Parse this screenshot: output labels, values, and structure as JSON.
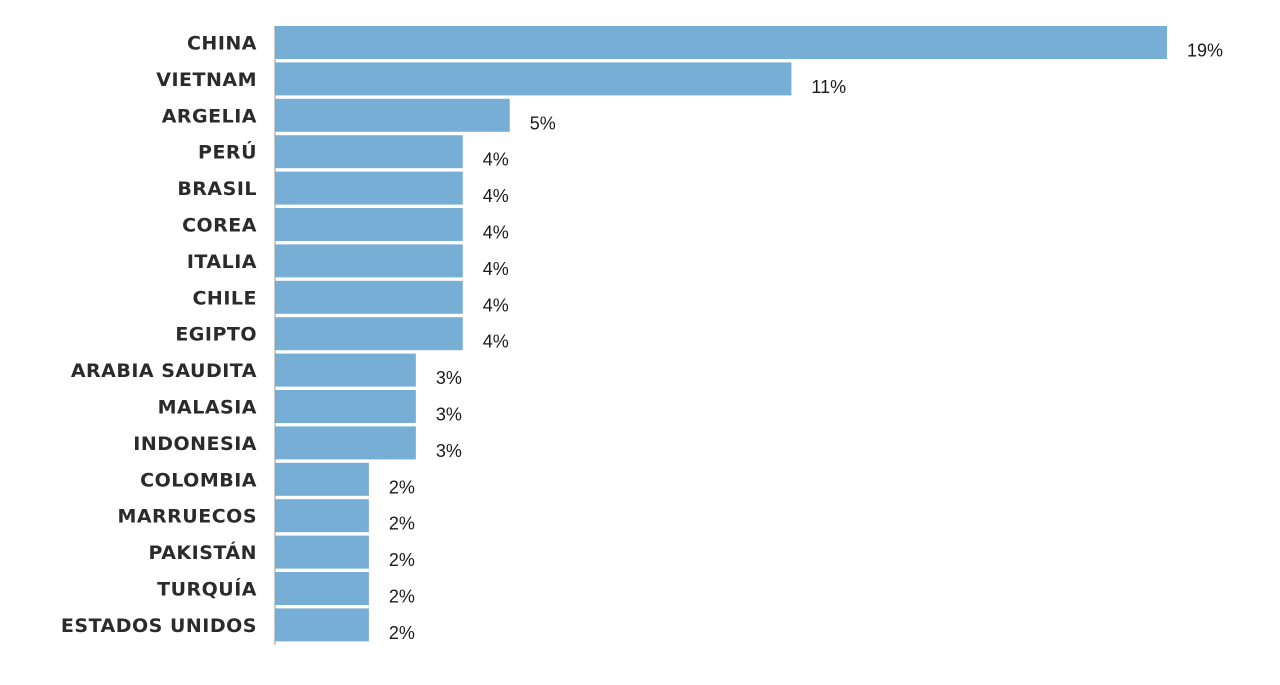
{
  "chart_data": {
    "type": "bar",
    "orientation": "horizontal",
    "categories": [
      "CHINA",
      "VIETNAM",
      "ARGELIA",
      "PERÚ",
      "BRASIL",
      "COREA",
      "ITALIA",
      "CHILE",
      "EGIPTO",
      "ARABIA SAUDITA",
      "MALASIA",
      "INDONESIA",
      "COLOMBIA",
      "MARRUECOS",
      "PAKISTÁN",
      "TURQUÍA",
      "ESTADOS UNIDOS"
    ],
    "values": [
      19,
      11,
      5,
      4,
      4,
      4,
      4,
      4,
      4,
      3,
      3,
      3,
      2,
      2,
      2,
      2,
      2
    ],
    "value_labels": [
      "19%",
      "11%",
      "5%",
      "4%",
      "4%",
      "4%",
      "4%",
      "4%",
      "4%",
      "3%",
      "3%",
      "3%",
      "2%",
      "2%",
      "2%",
      "2%",
      "2%"
    ],
    "xlim": [
      0,
      19
    ],
    "grid": false,
    "legend": "none",
    "colors": {
      "bar": "#77aed6",
      "axis": "#9a9a9a",
      "text": "#2b2b2b"
    }
  }
}
